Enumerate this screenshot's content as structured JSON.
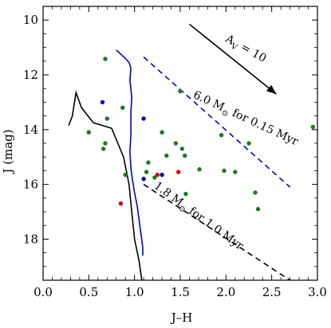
{
  "chart_data": {
    "type": "scatter",
    "title": "",
    "xlabel": "J–H",
    "ylabel": "J (mag)",
    "xlim": [
      0.0,
      3.0
    ],
    "ylim": [
      19.5,
      9.5
    ],
    "y_inverted": true,
    "grid": false,
    "xticks": [
      "0.0",
      "0.5",
      "1.0",
      "1.5",
      "2.0",
      "2.5",
      "3.0"
    ],
    "yticks": [
      "10",
      "12",
      "14",
      "16",
      "18"
    ],
    "series": [
      {
        "kind": "points",
        "color": "#1a7a1a",
        "points": [
          [
            0.68,
            11.42
          ],
          [
            0.87,
            13.2
          ],
          [
            0.5,
            14.1
          ],
          [
            0.7,
            13.6
          ],
          [
            0.68,
            14.5
          ],
          [
            0.66,
            14.7
          ],
          [
            0.9,
            15.65
          ],
          [
            1.15,
            15.2
          ],
          [
            1.13,
            15.55
          ],
          [
            1.22,
            15.75
          ],
          [
            1.3,
            14.1
          ],
          [
            1.35,
            14.95
          ],
          [
            1.45,
            14.5
          ],
          [
            1.5,
            12.6
          ],
          [
            1.52,
            14.7
          ],
          [
            1.55,
            14.95
          ],
          [
            1.56,
            16.35
          ],
          [
            1.71,
            15.45
          ],
          [
            1.95,
            14.2
          ],
          [
            1.98,
            15.5
          ],
          [
            2.1,
            15.55
          ],
          [
            2.25,
            14.5
          ],
          [
            2.32,
            16.3
          ],
          [
            2.35,
            16.9
          ],
          [
            2.95,
            13.9
          ]
        ]
      },
      {
        "kind": "points",
        "color": "#0000cc",
        "points": [
          [
            0.65,
            13.0
          ],
          [
            1.1,
            13.6
          ],
          [
            1.1,
            15.8
          ],
          [
            1.3,
            15.65
          ]
        ]
      },
      {
        "kind": "points",
        "color": "#dd0000",
        "points": [
          [
            0.85,
            16.7
          ],
          [
            1.25,
            15.65
          ],
          [
            1.48,
            15.55
          ]
        ]
      },
      {
        "kind": "line",
        "style": "solid",
        "color": "#0000cc",
        "points": [
          [
            0.8,
            11.1
          ],
          [
            0.82,
            11.15
          ],
          [
            0.9,
            11.4
          ],
          [
            0.94,
            11.55
          ],
          [
            0.96,
            11.75
          ],
          [
            0.95,
            12.2
          ],
          [
            0.97,
            12.8
          ],
          [
            0.96,
            13.4
          ],
          [
            0.96,
            14.2
          ],
          [
            0.95,
            14.8
          ],
          [
            0.96,
            15.4
          ],
          [
            0.98,
            15.9
          ],
          [
            1.0,
            16.3
          ],
          [
            1.03,
            16.8
          ],
          [
            1.05,
            17.3
          ],
          [
            1.07,
            17.8
          ],
          [
            1.09,
            18.3
          ],
          [
            1.09,
            18.6
          ]
        ]
      },
      {
        "kind": "line",
        "style": "solid",
        "color": "#000000",
        "points": [
          [
            0.28,
            13.85
          ],
          [
            0.32,
            13.5
          ],
          [
            0.36,
            12.65
          ],
          [
            0.42,
            13.2
          ],
          [
            0.55,
            13.75
          ],
          [
            0.75,
            13.95
          ],
          [
            0.88,
            15.0
          ],
          [
            0.94,
            16.0
          ],
          [
            0.97,
            17.0
          ],
          [
            1.0,
            18.0
          ],
          [
            1.05,
            18.8
          ],
          [
            1.08,
            19.5
          ]
        ]
      },
      {
        "kind": "line",
        "style": "dashed",
        "color": "#0000cc",
        "points": [
          [
            1.1,
            11.35
          ],
          [
            2.7,
            16.1
          ]
        ]
      },
      {
        "kind": "line",
        "style": "dashed",
        "color": "#000000",
        "points": [
          [
            1.1,
            16.0
          ],
          [
            2.7,
            19.5
          ]
        ]
      }
    ],
    "annotations": [
      {
        "kind": "arrow",
        "from": [
          1.6,
          10.15
        ],
        "to": [
          2.55,
          12.7
        ],
        "label_main": "A",
        "label_sub": "V",
        "label_rest": " = 10",
        "label_at": [
          2.2,
          11.15
        ],
        "angle": 29
      },
      {
        "kind": "text",
        "label_main": "6.0 M",
        "label_sub": "⊙",
        "label_rest": " for 0.15 Myr",
        "label_at": [
          2.2,
          13.7
        ],
        "angle": 25
      },
      {
        "kind": "text",
        "label_main": "1.8 M",
        "label_sub": "⊙",
        "label_rest": " for 1.0 Myr",
        "label_at": [
          1.68,
          17.25
        ],
        "angle": 36
      }
    ]
  }
}
